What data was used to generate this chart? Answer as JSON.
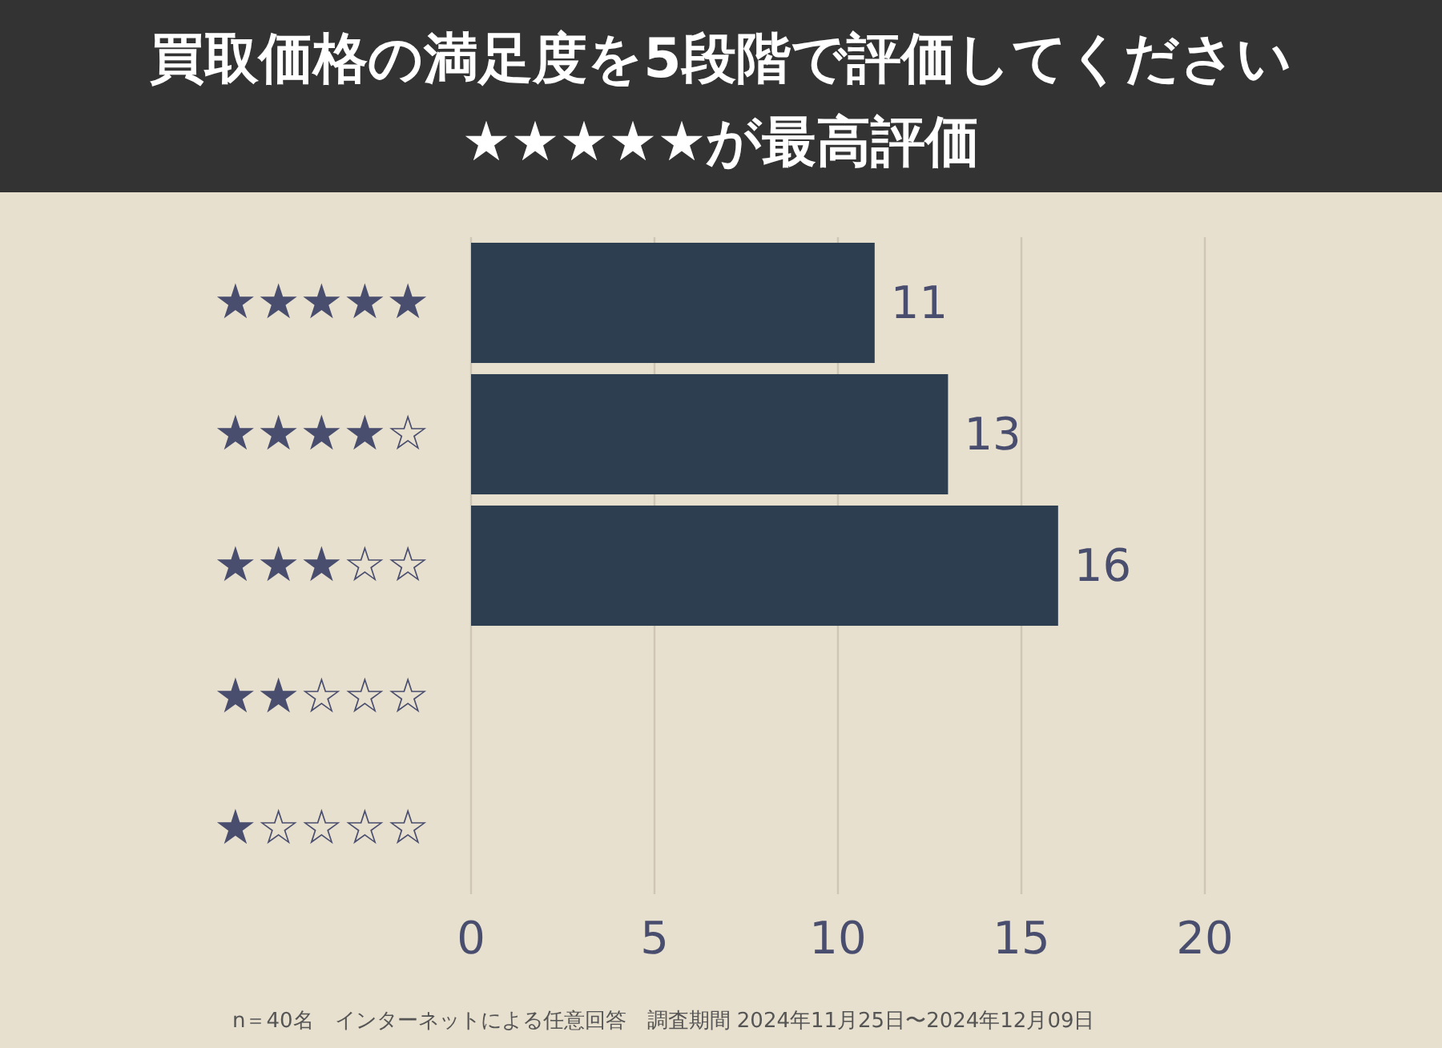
{
  "chart_data": {
    "type": "bar",
    "orientation": "horizontal",
    "title": "買取価格の満足度を5段階で評価してください",
    "subtitle": "★★★★★が最高評価",
    "categories": [
      "★★★★★",
      "★★★★☆",
      "★★★☆☆",
      "★★☆☆☆",
      "★☆☆☆☆"
    ],
    "values": [
      11,
      13,
      16,
      0,
      0
    ],
    "color": "#2c3e50",
    "value_labels": [
      "11",
      "13",
      "16",
      null,
      null
    ],
    "xlim": [
      0,
      20
    ],
    "xticks": [
      0,
      5,
      10,
      15,
      20
    ],
    "grid": "x",
    "annotations": [
      "n＝40名　インターネットによる任意回答　調査期間 2024年11月25日〜2024年12月09日"
    ]
  }
}
